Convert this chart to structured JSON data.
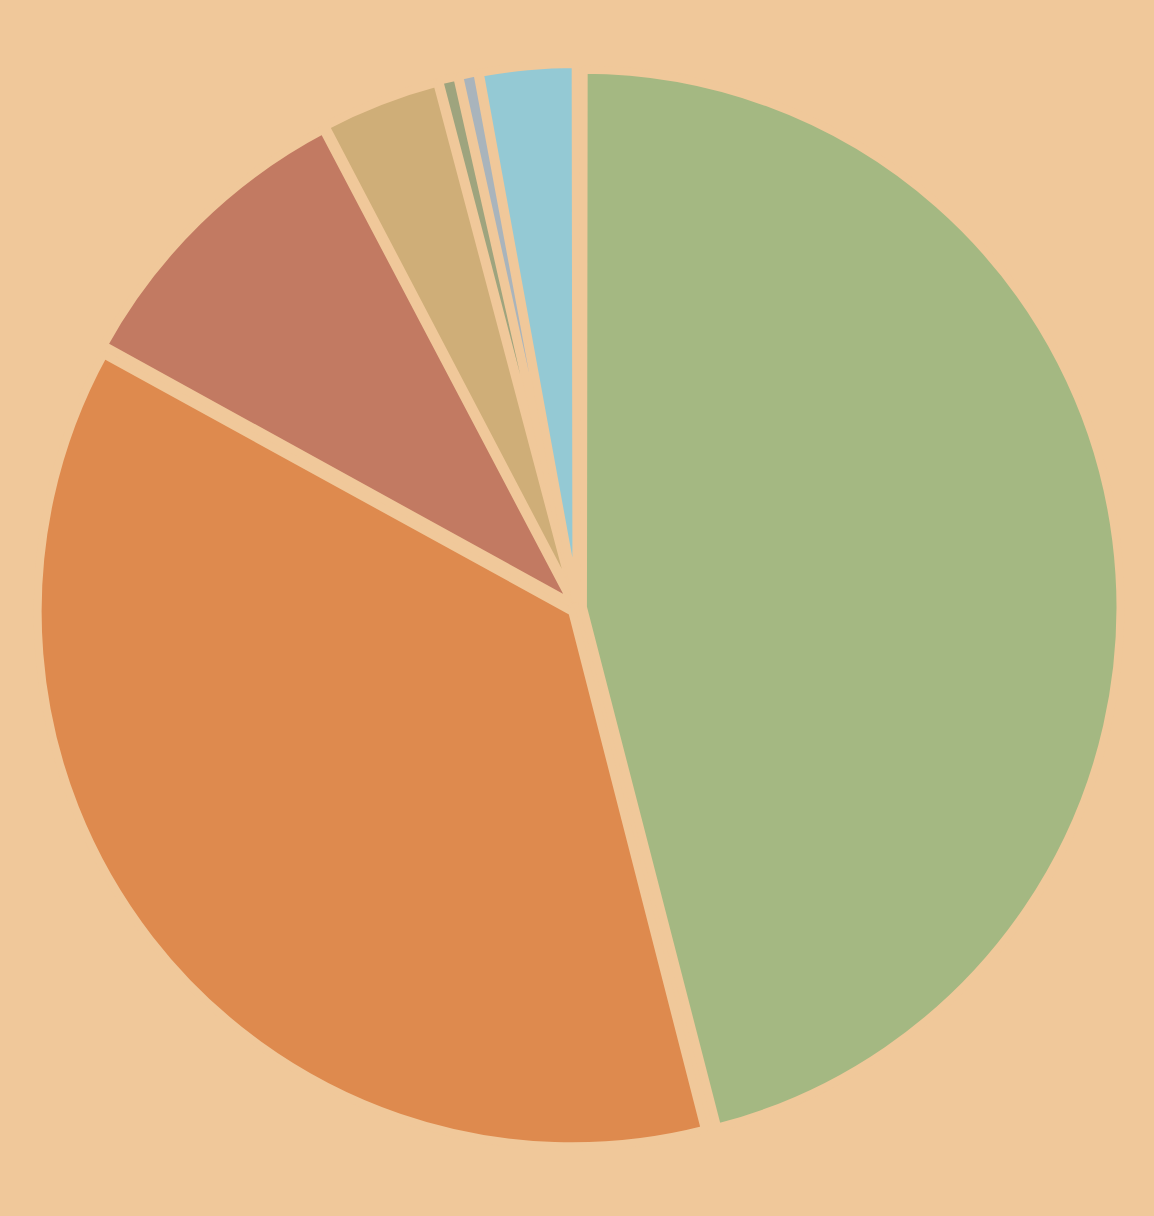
{
  "chart_data": {
    "type": "pie",
    "categories": [
      null,
      null,
      null,
      null,
      null,
      null,
      null
    ],
    "values": [
      46,
      37,
      9.3,
      3.6,
      0.6,
      0.6,
      2.9
    ],
    "colors": [
      "#a4b882",
      "#de8a4e",
      "#c27a62",
      "#cfae78",
      "#9ea47e",
      "#a9b4bc",
      "#94c9d4"
    ]
  }
}
